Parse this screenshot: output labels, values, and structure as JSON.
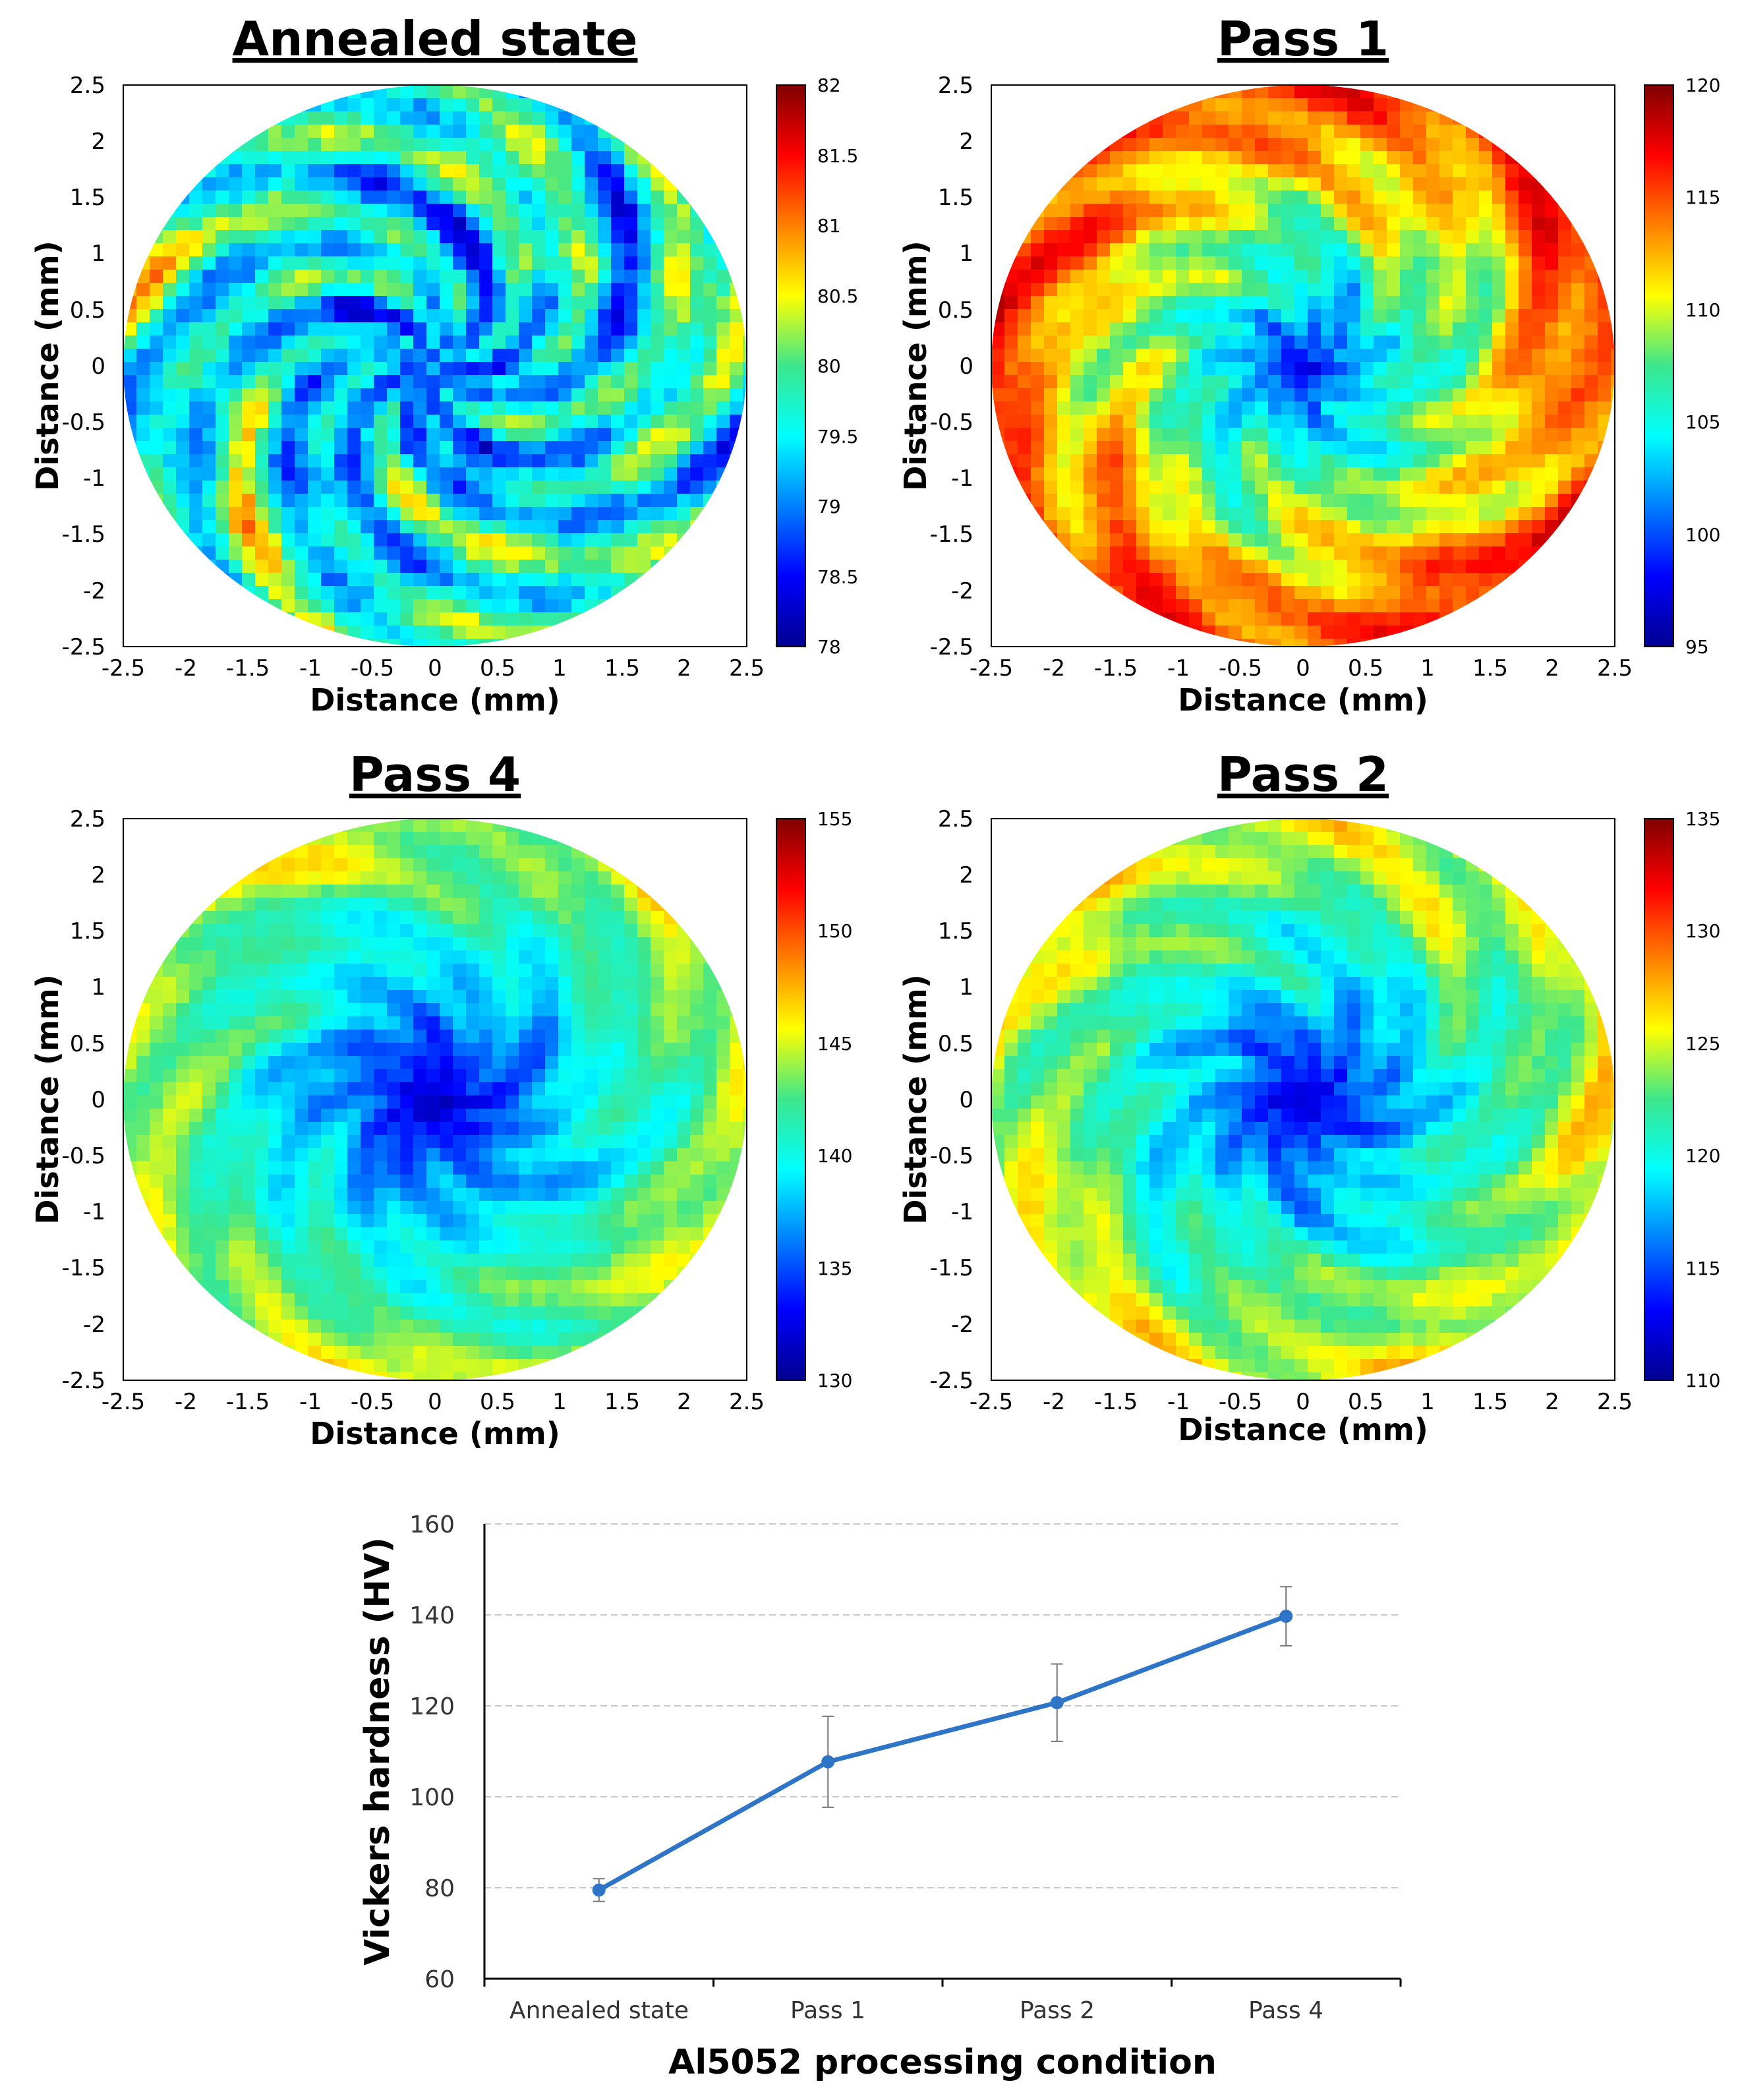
{
  "chart_data": [
    {
      "type": "heatmap",
      "title": "Annealed state",
      "xlabel": "Distance (mm)",
      "ylabel": "Distance (mm)",
      "xlim": [
        -2.5,
        2.5
      ],
      "ylim": [
        -2.5,
        2.5
      ],
      "xticks": [
        "-2.5",
        "-2",
        "-1.5",
        "-1",
        "-0.5",
        "0",
        "0.5",
        "1",
        "1.5",
        "2",
        "2.5"
      ],
      "yticks": [
        "2.5",
        "2",
        "1.5",
        "1",
        "0.5",
        "0",
        "-0.5",
        "-1",
        "-1.5",
        "-2",
        "-2.5"
      ],
      "colorbar": {
        "min": 78,
        "max": 82,
        "ticks": [
          "82",
          "81.5",
          "81",
          "80.5",
          "80",
          "79.5",
          "79",
          "78.5",
          "78"
        ]
      },
      "seed": 11,
      "center_level": 0.22,
      "edge_level": 0.45,
      "noise": 0.42
    },
    {
      "type": "heatmap",
      "title": "Pass 1",
      "xlabel": "Distance (mm)",
      "ylabel": "Distance (mm)",
      "xlim": [
        -2.5,
        2.5
      ],
      "ylim": [
        -2.5,
        2.5
      ],
      "xticks": [
        "-2.5",
        "-2",
        "-1.5",
        "-1",
        "-0.5",
        "0",
        "0.5",
        "1",
        "1.5",
        "2",
        "2.5"
      ],
      "yticks": [
        "2.5",
        "2",
        "1.5",
        "1",
        "0.5",
        "0",
        "-0.5",
        "-1",
        "-1.5",
        "-2",
        "-2.5"
      ],
      "colorbar": {
        "min": 95,
        "max": 120,
        "ticks": [
          "120",
          "115",
          "110",
          "105",
          "100",
          "95"
        ]
      },
      "seed": 23,
      "center_level": 0.08,
      "edge_level": 0.82,
      "noise": 0.22
    },
    {
      "type": "heatmap",
      "title": "Pass 4",
      "xlabel": "Distance (mm)",
      "ylabel": "Distance (mm)",
      "xlim": [
        -2.5,
        2.5
      ],
      "ylim": [
        -2.5,
        2.5
      ],
      "xticks": [
        "-2.5",
        "-2",
        "-1.5",
        "-1",
        "-0.5",
        "0",
        "0.5",
        "1",
        "1.5",
        "2",
        "2.5"
      ],
      "yticks": [
        "2.5",
        "2",
        "1.5",
        "1",
        "0.5",
        "0",
        "-0.5",
        "-1",
        "-1.5",
        "-2",
        "-2.5"
      ],
      "colorbar": {
        "min": 130,
        "max": 155,
        "ticks": [
          "155",
          "150",
          "145",
          "140",
          "135",
          "130"
        ]
      },
      "seed": 37,
      "center_level": 0.02,
      "edge_level": 0.58,
      "noise": 0.16
    },
    {
      "type": "heatmap",
      "title": "Pass 2",
      "xlabel": "Distance (mm)",
      "ylabel": "Distance (mm)",
      "xlim": [
        -2.5,
        2.5
      ],
      "ylim": [
        -2.5,
        2.5
      ],
      "xticks": [
        "-2.5",
        "-2",
        "-1.5",
        "-1",
        "-0.5",
        "0",
        "0.5",
        "1",
        "1.5",
        "2",
        "2.5"
      ],
      "yticks": [
        "2.5",
        "2",
        "1.5",
        "1",
        "0.5",
        "0",
        "-0.5",
        "-1",
        "-1.5",
        "-2",
        "-2.5"
      ],
      "colorbar": {
        "min": 110,
        "max": 135,
        "ticks": [
          "135",
          "130",
          "125",
          "120",
          "115",
          "110"
        ]
      },
      "seed": 53,
      "center_level": 0.04,
      "edge_level": 0.62,
      "noise": 0.18
    },
    {
      "type": "line",
      "title": "",
      "xlabel": "Al5052 processing condition",
      "ylabel": "Vickers hardness (HV)",
      "categories": [
        "Annealed state",
        "Pass 1",
        "Pass 2",
        "Pass 4"
      ],
      "values": [
        79.5,
        107.7,
        120.7,
        139.7
      ],
      "error": [
        2.5,
        10,
        8.5,
        6.5
      ],
      "ylim": [
        60,
        160
      ],
      "yticks": [
        "60",
        "80",
        "100",
        "120",
        "140",
        "160"
      ],
      "grid": true,
      "color": "#2E75C8"
    }
  ]
}
